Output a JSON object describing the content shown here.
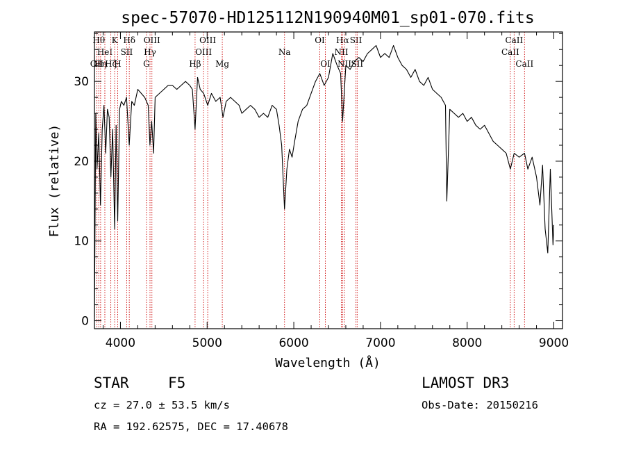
{
  "chart_data": {
    "type": "line",
    "title": "spec-57070-HD125112N190940M01_sp01-070.fits",
    "xlabel": "Wavelength (Å)",
    "ylabel": "Flux (relative)",
    "xlim": [
      3700,
      9100
    ],
    "ylim": [
      -1,
      36.2
    ],
    "x_ticks": [
      4000,
      5000,
      6000,
      7000,
      8000,
      9000
    ],
    "y_ticks": [
      0,
      10,
      20,
      30
    ],
    "grid": false,
    "legend": "none",
    "series": [
      {
        "color": "#000000",
        "x": [
          3700,
          3715,
          3730,
          3750,
          3770,
          3790,
          3810,
          3830,
          3850,
          3870,
          3890,
          3910,
          3933,
          3950,
          3968,
          3990,
          4010,
          4040,
          4070,
          4101,
          4130,
          4160,
          4200,
          4240,
          4280,
          4300,
          4320,
          4340,
          4360,
          4383,
          4400,
          4450,
          4500,
          4550,
          4600,
          4650,
          4700,
          4750,
          4800,
          4830,
          4861,
          4890,
          4920,
          4960,
          5007,
          5050,
          5100,
          5150,
          5183,
          5220,
          5270,
          5320,
          5370,
          5400,
          5450,
          5500,
          5550,
          5600,
          5650,
          5700,
          5750,
          5800,
          5830,
          5860,
          5893,
          5920,
          5950,
          5980,
          6010,
          6050,
          6100,
          6150,
          6200,
          6250,
          6300,
          6350,
          6400,
          6450,
          6500,
          6540,
          6563,
          6600,
          6650,
          6700,
          6750,
          6800,
          6850,
          6900,
          6950,
          7000,
          7050,
          7100,
          7150,
          7200,
          7250,
          7300,
          7350,
          7400,
          7450,
          7500,
          7550,
          7600,
          7650,
          7700,
          7750,
          7765,
          7800,
          7850,
          7900,
          7950,
          8000,
          8050,
          8100,
          8150,
          8200,
          8250,
          8300,
          8350,
          8400,
          8450,
          8498,
          8542,
          8600,
          8662,
          8700,
          8750,
          8800,
          8840,
          8870,
          8900,
          8930,
          8960,
          8990,
          9000
        ],
        "values": [
          0.5,
          26.0,
          19.0,
          23.5,
          14.5,
          24.0,
          27.0,
          21.0,
          26.5,
          25.5,
          18.0,
          24.0,
          11.5,
          24.5,
          12.5,
          26.5,
          27.5,
          27.0,
          28.0,
          22.0,
          27.5,
          27.0,
          29.0,
          28.5,
          28.0,
          27.5,
          27.0,
          22.0,
          25.0,
          21.0,
          28.0,
          28.5,
          29.0,
          29.5,
          29.5,
          29.0,
          29.5,
          30.0,
          29.5,
          29.0,
          24.0,
          30.5,
          29.0,
          28.5,
          27.0,
          28.5,
          27.5,
          28.0,
          25.5,
          27.5,
          28.0,
          27.5,
          27.0,
          26.0,
          26.5,
          27.0,
          26.5,
          25.5,
          26.0,
          25.5,
          27.0,
          26.5,
          24.5,
          22.0,
          14.0,
          19.0,
          21.5,
          20.5,
          22.5,
          25.0,
          26.5,
          27.0,
          28.5,
          30.0,
          31.0,
          29.5,
          30.5,
          33.5,
          32.0,
          31.0,
          25.0,
          32.0,
          31.5,
          32.5,
          33.0,
          32.5,
          33.5,
          34.0,
          34.5,
          33.0,
          33.5,
          33.0,
          34.5,
          33.0,
          32.0,
          31.5,
          30.5,
          31.5,
          30.0,
          29.5,
          30.5,
          29.0,
          28.5,
          28.0,
          27.0,
          15.0,
          26.5,
          26.0,
          25.5,
          26.0,
          25.0,
          25.5,
          24.5,
          24.0,
          24.5,
          23.5,
          22.5,
          22.0,
          21.5,
          21.0,
          19.0,
          21.0,
          20.5,
          21.0,
          19.0,
          20.5,
          18.0,
          14.5,
          19.5,
          11.5,
          8.5,
          19.0,
          9.5,
          12.0
        ]
      }
    ],
    "line_markers": [
      {
        "x": 3727,
        "label": "OII",
        "level": 3
      },
      {
        "x": 3750,
        "label": "Hθ",
        "level": 1
      },
      {
        "x": 3771,
        "label": "Hη",
        "level": 3
      },
      {
        "x": 3820,
        "label": "HeI",
        "level": 2
      },
      {
        "x": 3889,
        "label": "Hζ",
        "level": 3
      },
      {
        "x": 3933,
        "label": "K",
        "level": 1
      },
      {
        "x": 3968,
        "label": "H",
        "level": 3
      },
      {
        "x": 4072,
        "label": "SII",
        "level": 2
      },
      {
        "x": 4102,
        "label": "Hδ",
        "level": 1
      },
      {
        "x": 4300,
        "label": "G",
        "level": 3
      },
      {
        "x": 4341,
        "label": "Hγ",
        "level": 2
      },
      {
        "x": 4363,
        "label": "OIII",
        "level": 1
      },
      {
        "x": 4861,
        "label": "Hβ",
        "level": 3
      },
      {
        "x": 4959,
        "label": "OIII",
        "level": 2
      },
      {
        "x": 5007,
        "label": "OIII",
        "level": 1
      },
      {
        "x": 5175,
        "label": "Mg",
        "level": 3
      },
      {
        "x": 5893,
        "label": "Na",
        "level": 2
      },
      {
        "x": 6300,
        "label": "OI",
        "level": 1
      },
      {
        "x": 6364,
        "label": "OI",
        "level": 3
      },
      {
        "x": 6548,
        "label": "NII",
        "level": 2
      },
      {
        "x": 6563,
        "label": "Hα",
        "level": 1
      },
      {
        "x": 6584,
        "label": "NII",
        "level": 3
      },
      {
        "x": 6717,
        "label": "SII",
        "level": 1
      },
      {
        "x": 6731,
        "label": "SII",
        "level": 3
      },
      {
        "x": 8498,
        "label": "CaII",
        "level": 2
      },
      {
        "x": 8542,
        "label": "CaII",
        "level": 1
      },
      {
        "x": 8662,
        "label": "CaII",
        "level": 3
      }
    ],
    "marker_color": "#cc0000"
  },
  "info": {
    "object_class": "STAR",
    "subclass": "F5",
    "survey": "LAMOST DR3",
    "velocity": "cz = 27.0 ± 53.5 km/s",
    "obs_date": "Obs-Date: 20150216",
    "coords": "RA = 192.62575, DEC =  17.40678"
  }
}
